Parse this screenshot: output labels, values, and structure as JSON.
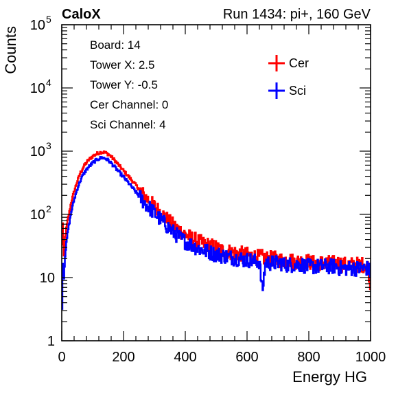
{
  "header": {
    "brand": "CaloX",
    "run_info": "Run 1434: pi+, 160 GeV"
  },
  "info_box": {
    "lines": [
      "Board: 14",
      "Tower X: 2.5",
      "Tower Y: -0.5",
      "Cer Channel: 0",
      "Sci Channel: 4"
    ]
  },
  "colors": {
    "cer": "#ff0000",
    "sci": "#0000ff",
    "axis": "#000000"
  },
  "chart_data": {
    "type": "line",
    "style": "histogram-step",
    "xlabel": "Energy HG",
    "ylabel": "Counts",
    "xlim": [
      0,
      1000
    ],
    "ylim": [
      1,
      100000
    ],
    "yscale": "log",
    "grid": false,
    "legend_position": "top-right",
    "x_ticks": [
      "0",
      "200",
      "400",
      "600",
      "800",
      "1000"
    ],
    "y_ticks": [
      {
        "base": "1",
        "exp": ""
      },
      {
        "base": "10",
        "exp": ""
      },
      {
        "base": "10",
        "exp": "2"
      },
      {
        "base": "10",
        "exp": "3"
      },
      {
        "base": "10",
        "exp": "4"
      },
      {
        "base": "10",
        "exp": "5"
      }
    ],
    "series": [
      {
        "name": "Cer",
        "color": "#ff0000",
        "points": [
          [
            0,
            15
          ],
          [
            2,
            90
          ],
          [
            4,
            60
          ],
          [
            6,
            18
          ],
          [
            8,
            25
          ],
          [
            10,
            40
          ],
          [
            15,
            60
          ],
          [
            20,
            85
          ],
          [
            25,
            110
          ],
          [
            30,
            150
          ],
          [
            40,
            230
          ],
          [
            50,
            330
          ],
          [
            60,
            450
          ],
          [
            70,
            560
          ],
          [
            80,
            660
          ],
          [
            90,
            750
          ],
          [
            100,
            830
          ],
          [
            110,
            890
          ],
          [
            120,
            940
          ],
          [
            130,
            970
          ],
          [
            140,
            950
          ],
          [
            150,
            900
          ],
          [
            160,
            820
          ],
          [
            170,
            730
          ],
          [
            180,
            640
          ],
          [
            190,
            560
          ],
          [
            200,
            490
          ],
          [
            210,
            430
          ],
          [
            220,
            380
          ],
          [
            230,
            330
          ],
          [
            240,
            290
          ],
          [
            250,
            250
          ],
          [
            260,
            215
          ],
          [
            270,
            190
          ],
          [
            280,
            170
          ],
          [
            290,
            150
          ],
          [
            300,
            135
          ],
          [
            310,
            120
          ],
          [
            320,
            108
          ],
          [
            330,
            95
          ],
          [
            340,
            85
          ],
          [
            350,
            75
          ],
          [
            360,
            68
          ],
          [
            370,
            62
          ],
          [
            380,
            57
          ],
          [
            390,
            52
          ],
          [
            400,
            48
          ],
          [
            410,
            45
          ],
          [
            420,
            42
          ],
          [
            430,
            40
          ],
          [
            440,
            38
          ],
          [
            450,
            36
          ],
          [
            460,
            34
          ],
          [
            470,
            33
          ],
          [
            480,
            32
          ],
          [
            490,
            31
          ],
          [
            500,
            30
          ],
          [
            510,
            28
          ],
          [
            520,
            27
          ],
          [
            530,
            26
          ],
          [
            540,
            26
          ],
          [
            550,
            25
          ],
          [
            560,
            25
          ],
          [
            570,
            24
          ],
          [
            580,
            24
          ],
          [
            590,
            23
          ],
          [
            600,
            23
          ],
          [
            610,
            22
          ],
          [
            620,
            22
          ],
          [
            630,
            21
          ],
          [
            640,
            21
          ],
          [
            650,
            21
          ],
          [
            660,
            20
          ],
          [
            670,
            20
          ],
          [
            680,
            20
          ],
          [
            690,
            20
          ],
          [
            700,
            19
          ],
          [
            710,
            19
          ],
          [
            720,
            19
          ],
          [
            730,
            19
          ],
          [
            740,
            19
          ],
          [
            750,
            18
          ],
          [
            760,
            18
          ],
          [
            770,
            18
          ],
          [
            780,
            18
          ],
          [
            790,
            18
          ],
          [
            800,
            18
          ],
          [
            810,
            17
          ],
          [
            820,
            17
          ],
          [
            830,
            17
          ],
          [
            840,
            17
          ],
          [
            850,
            17
          ],
          [
            860,
            17
          ],
          [
            870,
            17
          ],
          [
            880,
            17
          ],
          [
            890,
            17
          ],
          [
            900,
            17
          ],
          [
            910,
            16
          ],
          [
            920,
            16
          ],
          [
            930,
            16
          ],
          [
            940,
            16
          ],
          [
            950,
            16
          ],
          [
            960,
            16
          ],
          [
            970,
            16
          ],
          [
            980,
            16
          ],
          [
            990,
            16
          ],
          [
            1000,
            8
          ]
        ]
      },
      {
        "name": "Sci",
        "color": "#0000ff",
        "points": [
          [
            0,
            1
          ],
          [
            2,
            10
          ],
          [
            4,
            30
          ],
          [
            6,
            8
          ],
          [
            8,
            12
          ],
          [
            10,
            20
          ],
          [
            15,
            35
          ],
          [
            20,
            55
          ],
          [
            25,
            75
          ],
          [
            30,
            105
          ],
          [
            40,
            170
          ],
          [
            50,
            250
          ],
          [
            60,
            340
          ],
          [
            70,
            430
          ],
          [
            80,
            510
          ],
          [
            90,
            580
          ],
          [
            100,
            650
          ],
          [
            110,
            710
          ],
          [
            120,
            760
          ],
          [
            130,
            790
          ],
          [
            140,
            770
          ],
          [
            150,
            720
          ],
          [
            160,
            650
          ],
          [
            170,
            570
          ],
          [
            180,
            500
          ],
          [
            190,
            440
          ],
          [
            200,
            390
          ],
          [
            210,
            340
          ],
          [
            220,
            300
          ],
          [
            230,
            260
          ],
          [
            240,
            225
          ],
          [
            250,
            195
          ],
          [
            260,
            170
          ],
          [
            270,
            150
          ],
          [
            280,
            132
          ],
          [
            290,
            118
          ],
          [
            300,
            105
          ],
          [
            310,
            93
          ],
          [
            320,
            83
          ],
          [
            330,
            74
          ],
          [
            340,
            66
          ],
          [
            350,
            59
          ],
          [
            360,
            53
          ],
          [
            370,
            48
          ],
          [
            380,
            44
          ],
          [
            390,
            40
          ],
          [
            400,
            37
          ],
          [
            410,
            35
          ],
          [
            420,
            33
          ],
          [
            430,
            31
          ],
          [
            440,
            29
          ],
          [
            450,
            28
          ],
          [
            460,
            27
          ],
          [
            470,
            26
          ],
          [
            480,
            25
          ],
          [
            490,
            24
          ],
          [
            500,
            23
          ],
          [
            510,
            23
          ],
          [
            520,
            22
          ],
          [
            530,
            22
          ],
          [
            540,
            21
          ],
          [
            550,
            21
          ],
          [
            560,
            20
          ],
          [
            570,
            20
          ],
          [
            580,
            20
          ],
          [
            590,
            19
          ],
          [
            600,
            19
          ],
          [
            610,
            19
          ],
          [
            620,
            18
          ],
          [
            630,
            18
          ],
          [
            640,
            18
          ],
          [
            650,
            6
          ],
          [
            660,
            18
          ],
          [
            670,
            17
          ],
          [
            680,
            17
          ],
          [
            690,
            17
          ],
          [
            700,
            17
          ],
          [
            710,
            17
          ],
          [
            720,
            16
          ],
          [
            730,
            16
          ],
          [
            740,
            16
          ],
          [
            750,
            16
          ],
          [
            760,
            16
          ],
          [
            770,
            16
          ],
          [
            780,
            16
          ],
          [
            790,
            15
          ],
          [
            800,
            15
          ],
          [
            810,
            15
          ],
          [
            820,
            15
          ],
          [
            830,
            15
          ],
          [
            840,
            15
          ],
          [
            850,
            15
          ],
          [
            860,
            15
          ],
          [
            870,
            15
          ],
          [
            880,
            15
          ],
          [
            890,
            15
          ],
          [
            900,
            14
          ],
          [
            910,
            14
          ],
          [
            920,
            14
          ],
          [
            930,
            14
          ],
          [
            940,
            14
          ],
          [
            950,
            14
          ],
          [
            960,
            14
          ],
          [
            970,
            14
          ],
          [
            980,
            14
          ],
          [
            990,
            14
          ],
          [
            1000,
            12
          ]
        ]
      }
    ]
  }
}
